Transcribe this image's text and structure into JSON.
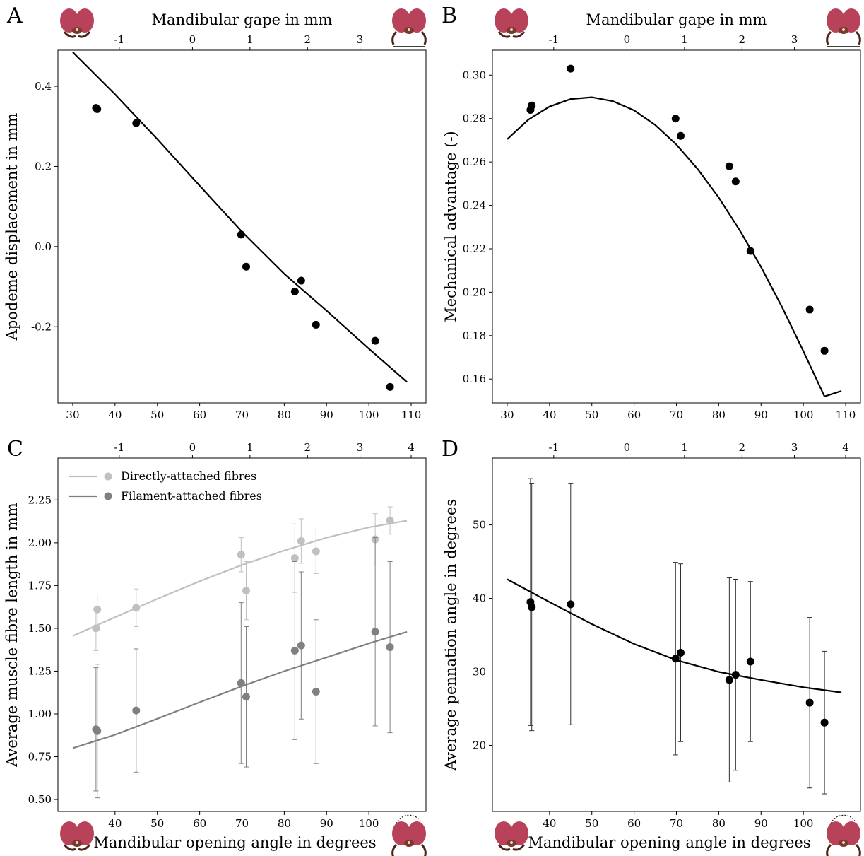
{
  "figure": {
    "icon_names": [
      "mandible-closed-icon",
      "mandible-open-icon"
    ],
    "colors": {
      "black": "#000000",
      "directly": "#c0c0c0",
      "filament": "#808080",
      "errbar": "#4d4d4d",
      "head_red": "#b8425a",
      "head_brown": "#5a2e1e"
    }
  },
  "chart_data": [
    {
      "panel": "A",
      "type": "scatter",
      "xlabel": "",
      "ylabel": "Apodeme displacement in mm",
      "top_xlabel": "Mandibular gape in mm",
      "x_ticks": [
        30,
        40,
        50,
        60,
        70,
        80,
        90,
        100,
        110
      ],
      "y_ticks": [
        -0.2,
        0.0,
        0.2,
        0.4
      ],
      "y_tick_labels": [
        "-0.2",
        "0.0",
        "0.2",
        "0.4"
      ],
      "top_ticks": [
        {
          "label": "-1",
          "x": 41.0
        },
        {
          "label": "0",
          "x": 58.3
        },
        {
          "label": "1",
          "x": 71.9
        },
        {
          "label": "2",
          "x": 85.5
        },
        {
          "label": "3",
          "x": 97.9
        }
      ],
      "xlim": [
        26.5,
        113.5
      ],
      "ylim": [
        -0.39,
        0.49
      ],
      "points": {
        "x": [
          35.5,
          35.8,
          45.0,
          69.8,
          71.0,
          82.5,
          84.0,
          87.5,
          101.5,
          105.0
        ],
        "y": [
          0.346,
          0.343,
          0.308,
          0.03,
          -0.05,
          -0.112,
          -0.085,
          -0.195,
          -0.235,
          -0.35
        ]
      },
      "fit_line": {
        "x": [
          30,
          40,
          50,
          60,
          70,
          80,
          90,
          100,
          109
        ],
        "y": [
          0.485,
          0.38,
          0.268,
          0.152,
          0.037,
          -0.068,
          -0.16,
          -0.255,
          -0.338
        ]
      }
    },
    {
      "panel": "B",
      "type": "scatter",
      "xlabel": "",
      "ylabel": "Mechanical advantage (-)",
      "top_xlabel": "Mandibular gape in mm",
      "x_ticks": [
        30,
        40,
        50,
        60,
        70,
        80,
        90,
        100,
        110
      ],
      "y_ticks": [
        0.16,
        0.18,
        0.2,
        0.22,
        0.24,
        0.26,
        0.28,
        0.3
      ],
      "y_tick_labels": [
        "0.16",
        "0.18",
        "0.20",
        "0.22",
        "0.24",
        "0.26",
        "0.28",
        "0.30"
      ],
      "top_ticks": [
        {
          "label": "-1",
          "x": 41.0
        },
        {
          "label": "0",
          "x": 58.3
        },
        {
          "label": "1",
          "x": 71.9
        },
        {
          "label": "2",
          "x": 85.5
        },
        {
          "label": "3",
          "x": 97.9
        }
      ],
      "xlim": [
        26.5,
        113.5
      ],
      "ylim": [
        0.149,
        0.3115
      ],
      "points": {
        "x": [
          35.5,
          35.8,
          45.0,
          69.8,
          71.0,
          82.5,
          84.0,
          87.5,
          101.5,
          105.0
        ],
        "y": [
          0.284,
          0.286,
          0.303,
          0.28,
          0.272,
          0.258,
          0.251,
          0.219,
          0.192,
          0.173
        ]
      },
      "fit_line": {
        "x": [
          30,
          35,
          40,
          45,
          50,
          55,
          60,
          65,
          70,
          75,
          80,
          85,
          90,
          95,
          100,
          105,
          109
        ],
        "y": [
          0.2705,
          0.2795,
          0.2855,
          0.289,
          0.2898,
          0.288,
          0.2838,
          0.277,
          0.268,
          0.2568,
          0.2436,
          0.2284,
          0.2116,
          0.193,
          0.1728,
          0.152,
          0.1545
        ]
      }
    },
    {
      "panel": "C",
      "type": "scatter",
      "xlabel": "Mandibular opening angle in degrees",
      "ylabel": "Average muscle fibre length in mm",
      "top_xlabel": "",
      "x_ticks": [
        40,
        50,
        60,
        70,
        80,
        90,
        100
      ],
      "y_ticks": [
        0.5,
        0.75,
        1.0,
        1.25,
        1.5,
        1.75,
        2.0,
        2.25
      ],
      "y_tick_labels": [
        "0.50",
        "0.75",
        "1.00",
        "1.25",
        "1.50",
        "1.75",
        "2.00",
        "2.25"
      ],
      "top_ticks": [
        {
          "label": "-1",
          "x": 41.0
        },
        {
          "label": "0",
          "x": 58.3
        },
        {
          "label": "1",
          "x": 71.9
        },
        {
          "label": "2",
          "x": 85.5
        },
        {
          "label": "3",
          "x": 97.9
        },
        {
          "label": "4",
          "x": 110.0
        }
      ],
      "xlim": [
        26.5,
        113.5
      ],
      "ylim": [
        0.43,
        2.495
      ],
      "legend": {
        "placement": "top-left"
      },
      "series": [
        {
          "name": "Directly-attached fibres",
          "color": "#c0c0c0",
          "x": [
            35.5,
            35.8,
            45.0,
            69.8,
            71.0,
            82.5,
            84.0,
            87.5,
            101.5,
            105.0
          ],
          "y": [
            1.5,
            1.61,
            1.62,
            1.93,
            1.72,
            1.91,
            2.01,
            1.95,
            2.02,
            2.13
          ],
          "err": [
            0.13,
            0.09,
            0.11,
            0.1,
            0.17,
            0.2,
            0.13,
            0.13,
            0.15,
            0.08
          ],
          "fit_x": [
            30,
            40,
            50,
            60,
            70,
            80,
            90,
            100,
            109
          ],
          "fit_y": [
            1.455,
            1.565,
            1.672,
            1.775,
            1.87,
            1.955,
            2.03,
            2.09,
            2.13
          ]
        },
        {
          "name": "Filament-attached fibres",
          "color": "#808080",
          "x": [
            35.5,
            35.8,
            45.0,
            69.8,
            71.0,
            82.5,
            84.0,
            87.5,
            101.5,
            105.0
          ],
          "y": [
            0.91,
            0.9,
            1.02,
            1.18,
            1.1,
            1.37,
            1.4,
            1.13,
            1.48,
            1.39
          ],
          "err": [
            0.36,
            0.39,
            0.36,
            0.47,
            0.41,
            0.52,
            0.43,
            0.42,
            0.55,
            0.5
          ],
          "fit_x": [
            30,
            40,
            50,
            60,
            70,
            80,
            90,
            100,
            109
          ],
          "fit_y": [
            0.8,
            0.878,
            0.972,
            1.068,
            1.162,
            1.25,
            1.33,
            1.412,
            1.48
          ]
        }
      ]
    },
    {
      "panel": "D",
      "type": "scatter",
      "xlabel": "Mandibular opening angle in degrees",
      "ylabel": "Average pennation angle in degrees",
      "top_xlabel": "",
      "x_ticks": [
        40,
        50,
        60,
        70,
        80,
        90,
        100
      ],
      "y_ticks": [
        20,
        30,
        40,
        50
      ],
      "y_tick_labels": [
        "20",
        "30",
        "40",
        "50"
      ],
      "top_ticks": [
        {
          "label": "-1",
          "x": 41.0
        },
        {
          "label": "0",
          "x": 58.3
        },
        {
          "label": "1",
          "x": 71.9
        },
        {
          "label": "2",
          "x": 85.5
        },
        {
          "label": "3",
          "x": 97.9
        },
        {
          "label": "4",
          "x": 110.0
        }
      ],
      "xlim": [
        26.5,
        113.5
      ],
      "ylim": [
        11.0,
        59.1
      ],
      "points": {
        "x": [
          35.5,
          35.8,
          45.0,
          69.8,
          71.0,
          82.5,
          84.0,
          87.5,
          101.5,
          105.0
        ],
        "y": [
          39.5,
          38.8,
          39.2,
          31.8,
          32.6,
          28.9,
          29.6,
          31.4,
          25.8,
          23.1
        ],
        "err": [
          16.8,
          16.8,
          16.4,
          13.1,
          12.1,
          13.9,
          13.0,
          10.9,
          11.6,
          9.7
        ]
      },
      "fit_line": {
        "x": [
          30,
          40,
          50,
          60,
          70,
          80,
          90,
          100,
          109
        ],
        "y": [
          42.6,
          39.5,
          36.5,
          33.8,
          31.6,
          30.0,
          28.9,
          27.9,
          27.2
        ]
      }
    }
  ]
}
